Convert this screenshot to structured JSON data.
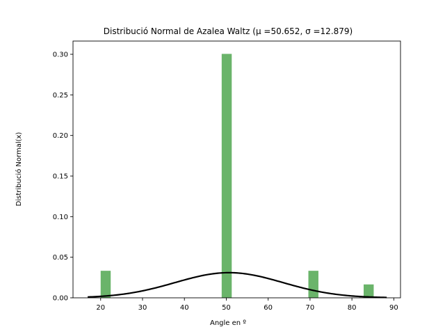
{
  "chart_data": {
    "type": "bar",
    "title": "Distribució Normal de Azalea Waltz (μ =50.652, σ =12.879)",
    "xlabel": "Angle en º",
    "ylabel": "Distribució Normal(x)",
    "xlim": [
      13.4,
      91.6
    ],
    "ylim": [
      0,
      0.3163
    ],
    "xticks": [
      20,
      30,
      40,
      50,
      60,
      70,
      80,
      90
    ],
    "yticks": [
      0.0,
      0.05,
      0.1,
      0.15,
      0.2,
      0.25,
      0.3
    ],
    "ytick_labels": [
      "0.00",
      "0.05",
      "0.10",
      "0.15",
      "0.20",
      "0.25",
      "0.30"
    ],
    "bar_color": "#6ab46a",
    "curve_color": "#000000",
    "bars": [
      {
        "x0": 20.0,
        "x1": 22.4,
        "height": 0.0333
      },
      {
        "x0": 48.9,
        "x1": 51.3,
        "height": 0.3005
      },
      {
        "x0": 69.6,
        "x1": 72.0,
        "height": 0.0333
      },
      {
        "x0": 82.8,
        "x1": 85.2,
        "height": 0.0165
      }
    ],
    "curve": {
      "name": "normal pdf",
      "mu": 50.652,
      "sigma": 12.879,
      "x_range": [
        16.9,
        88.3
      ]
    }
  }
}
